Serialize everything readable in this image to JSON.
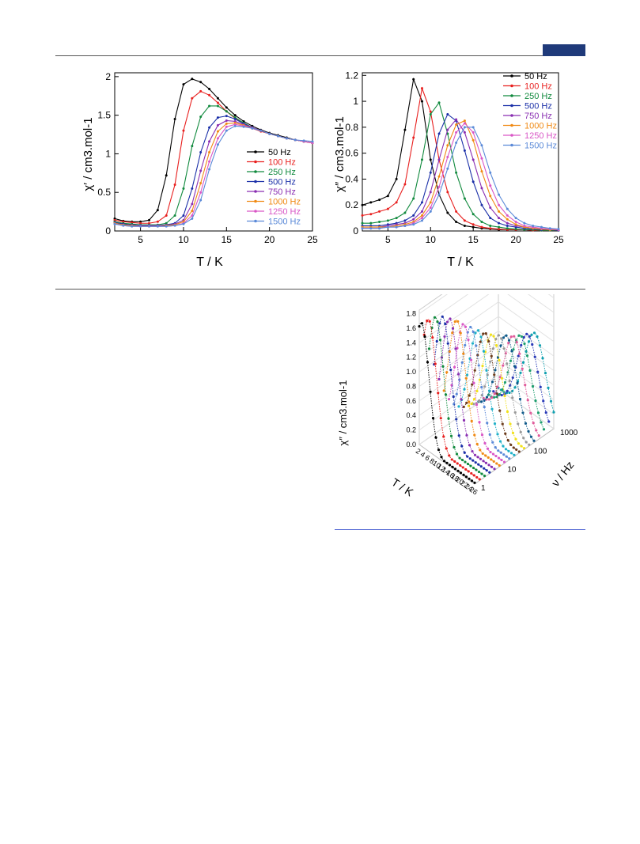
{
  "colors": {
    "header_tab": "#1f3a7a",
    "rules": "#555555",
    "footer_rule": "#5b6fd6"
  },
  "chart_data": [
    {
      "type": "line",
      "title": "",
      "xlabel": "T / K",
      "ylabel": "χ′ / cm3.mol-1",
      "xlim": [
        2,
        25
      ],
      "ylim": [
        0,
        2.05
      ],
      "xticks": [
        5,
        10,
        15,
        20,
        25
      ],
      "yticks": [
        0,
        0.5,
        1,
        1.5,
        2
      ],
      "ytick_labels": [
        "0",
        "0.5",
        "1",
        "1.5",
        "2"
      ],
      "legend_position": "center-right",
      "grid": false,
      "x": [
        2,
        3,
        4,
        5,
        6,
        7,
        8,
        9,
        10,
        11,
        12,
        13,
        14,
        15,
        16,
        17,
        18,
        19,
        20,
        21,
        22,
        23,
        24,
        25
      ],
      "series": [
        {
          "name": "50 Hz",
          "color": "#000000",
          "values": [
            0.16,
            0.13,
            0.12,
            0.12,
            0.14,
            0.27,
            0.72,
            1.45,
            1.9,
            1.97,
            1.93,
            1.84,
            1.72,
            1.6,
            1.5,
            1.42,
            1.36,
            1.31,
            1.27,
            1.24,
            1.21,
            1.18,
            1.16,
            1.14
          ]
        },
        {
          "name": "100 Hz",
          "color": "#e8201f",
          "values": [
            0.14,
            0.12,
            0.11,
            0.1,
            0.1,
            0.12,
            0.2,
            0.6,
            1.3,
            1.72,
            1.81,
            1.76,
            1.66,
            1.55,
            1.46,
            1.39,
            1.33,
            1.29,
            1.26,
            1.23,
            1.2,
            1.18,
            1.16,
            1.14
          ]
        },
        {
          "name": "250 Hz",
          "color": "#118a3e",
          "values": [
            0.12,
            0.1,
            0.09,
            0.08,
            0.08,
            0.08,
            0.1,
            0.2,
            0.55,
            1.1,
            1.48,
            1.62,
            1.62,
            1.55,
            1.47,
            1.4,
            1.34,
            1.3,
            1.26,
            1.23,
            1.2,
            1.18,
            1.16,
            1.14
          ]
        },
        {
          "name": "500 Hz",
          "color": "#1a2fa8",
          "values": [
            0.11,
            0.09,
            0.08,
            0.07,
            0.07,
            0.07,
            0.08,
            0.1,
            0.2,
            0.55,
            1.02,
            1.34,
            1.47,
            1.49,
            1.45,
            1.39,
            1.34,
            1.3,
            1.26,
            1.23,
            1.2,
            1.18,
            1.16,
            1.14
          ]
        },
        {
          "name": "750 Hz",
          "color": "#8a2fb2",
          "values": [
            0.1,
            0.08,
            0.07,
            0.07,
            0.07,
            0.07,
            0.07,
            0.09,
            0.14,
            0.35,
            0.78,
            1.16,
            1.37,
            1.43,
            1.42,
            1.38,
            1.34,
            1.3,
            1.26,
            1.23,
            1.2,
            1.18,
            1.16,
            1.14
          ]
        },
        {
          "name": "1000 Hz",
          "color": "#f08a14",
          "values": [
            0.1,
            0.08,
            0.07,
            0.06,
            0.06,
            0.06,
            0.07,
            0.08,
            0.12,
            0.26,
            0.62,
            1.02,
            1.29,
            1.39,
            1.4,
            1.37,
            1.33,
            1.3,
            1.26,
            1.23,
            1.2,
            1.18,
            1.16,
            1.14
          ]
        },
        {
          "name": "1250 Hz",
          "color": "#d957c6",
          "values": [
            0.09,
            0.07,
            0.06,
            0.06,
            0.06,
            0.06,
            0.06,
            0.07,
            0.1,
            0.2,
            0.5,
            0.9,
            1.2,
            1.35,
            1.38,
            1.36,
            1.33,
            1.3,
            1.26,
            1.23,
            1.2,
            1.18,
            1.16,
            1.14
          ]
        },
        {
          "name": "1500 Hz",
          "color": "#5b8ad8",
          "values": [
            0.09,
            0.07,
            0.06,
            0.06,
            0.06,
            0.06,
            0.06,
            0.07,
            0.09,
            0.16,
            0.4,
            0.8,
            1.12,
            1.3,
            1.36,
            1.35,
            1.33,
            1.3,
            1.26,
            1.23,
            1.2,
            1.18,
            1.17,
            1.16
          ]
        }
      ]
    },
    {
      "type": "line",
      "title": "",
      "xlabel": "T / K",
      "ylabel": "χ″ / cm3.mol-1",
      "xlim": [
        2,
        25
      ],
      "ylim": [
        0,
        1.22
      ],
      "xticks": [
        5,
        10,
        15,
        20,
        25
      ],
      "yticks": [
        0,
        0.2,
        0.4,
        0.6,
        0.8,
        1,
        1.2
      ],
      "ytick_labels": [
        "0",
        "0.2",
        "0.4",
        "0.6",
        "0.8",
        "1",
        "1.2"
      ],
      "legend_position": "top-right",
      "grid": false,
      "x": [
        2,
        3,
        4,
        5,
        6,
        7,
        8,
        9,
        10,
        11,
        12,
        13,
        14,
        15,
        16,
        17,
        18,
        19,
        20,
        21,
        22,
        23,
        24,
        25
      ],
      "series": [
        {
          "name": "50 Hz",
          "color": "#000000",
          "values": [
            0.2,
            0.22,
            0.24,
            0.27,
            0.4,
            0.78,
            1.17,
            1.0,
            0.55,
            0.28,
            0.14,
            0.07,
            0.04,
            0.03,
            0.02,
            0.015,
            0.01,
            0.01,
            0.01,
            0.01,
            0.005,
            0.005,
            0.005,
            0.005
          ]
        },
        {
          "name": "100 Hz",
          "color": "#e8201f",
          "values": [
            0.12,
            0.13,
            0.15,
            0.17,
            0.22,
            0.36,
            0.72,
            1.1,
            0.92,
            0.55,
            0.3,
            0.15,
            0.08,
            0.05,
            0.03,
            0.02,
            0.015,
            0.01,
            0.01,
            0.01,
            0.005,
            0.005,
            0.005,
            0.005
          ]
        },
        {
          "name": "250 Hz",
          "color": "#118a3e",
          "values": [
            0.06,
            0.06,
            0.07,
            0.08,
            0.1,
            0.14,
            0.25,
            0.55,
            0.9,
            0.99,
            0.75,
            0.45,
            0.25,
            0.13,
            0.07,
            0.04,
            0.03,
            0.02,
            0.015,
            0.01,
            0.01,
            0.005,
            0.005,
            0.005
          ]
        },
        {
          "name": "500 Hz",
          "color": "#1a2fa8",
          "values": [
            0.04,
            0.04,
            0.04,
            0.05,
            0.06,
            0.08,
            0.12,
            0.22,
            0.45,
            0.75,
            0.9,
            0.85,
            0.62,
            0.38,
            0.2,
            0.1,
            0.06,
            0.04,
            0.03,
            0.02,
            0.015,
            0.01,
            0.01,
            0.005
          ]
        },
        {
          "name": "750 Hz",
          "color": "#8a2fb2",
          "values": [
            0.03,
            0.03,
            0.03,
            0.04,
            0.05,
            0.06,
            0.09,
            0.15,
            0.3,
            0.55,
            0.78,
            0.86,
            0.76,
            0.55,
            0.33,
            0.18,
            0.1,
            0.06,
            0.04,
            0.03,
            0.02,
            0.015,
            0.01,
            0.01
          ]
        },
        {
          "name": "1000 Hz",
          "color": "#f08a14",
          "values": [
            0.03,
            0.03,
            0.03,
            0.03,
            0.04,
            0.05,
            0.07,
            0.12,
            0.22,
            0.42,
            0.66,
            0.82,
            0.85,
            0.7,
            0.46,
            0.27,
            0.15,
            0.09,
            0.05,
            0.03,
            0.02,
            0.015,
            0.01,
            0.01
          ]
        },
        {
          "name": "1250 Hz",
          "color": "#d957c6",
          "values": [
            0.02,
            0.02,
            0.02,
            0.03,
            0.03,
            0.04,
            0.06,
            0.1,
            0.18,
            0.34,
            0.57,
            0.76,
            0.83,
            0.76,
            0.56,
            0.35,
            0.2,
            0.12,
            0.07,
            0.04,
            0.03,
            0.02,
            0.015,
            0.01
          ]
        },
        {
          "name": "1500 Hz",
          "color": "#5b8ad8",
          "values": [
            0.02,
            0.02,
            0.02,
            0.03,
            0.03,
            0.04,
            0.05,
            0.08,
            0.15,
            0.28,
            0.48,
            0.68,
            0.8,
            0.8,
            0.66,
            0.45,
            0.28,
            0.17,
            0.1,
            0.06,
            0.04,
            0.03,
            0.02,
            0.015
          ]
        }
      ]
    },
    {
      "type": "line",
      "subtype": "3d-waterfall",
      "title": "",
      "xlabel": "T / K",
      "ylabel": "ν / Hz",
      "zlabel": "χ″ / cm3.mol-1",
      "xticks": [
        2,
        4,
        6,
        8,
        10,
        12,
        14,
        16,
        18,
        20,
        22,
        24,
        26
      ],
      "y_scale": "log",
      "yticks": [
        1,
        10,
        100,
        1000
      ],
      "zticks": [
        0.0,
        0.2,
        0.4,
        0.6,
        0.8,
        1.0,
        1.2,
        1.4,
        1.6,
        1.8
      ],
      "ztick_labels": [
        "0.0",
        "0.2",
        "0.4",
        "0.6",
        "0.8",
        "1.0",
        "1.2",
        "1.4",
        "1.6",
        "1.8"
      ],
      "grid": true,
      "approx_peak_values": [
        1.7,
        1.72,
        1.72,
        1.7,
        1.65,
        1.6,
        1.52,
        1.45,
        1.38,
        1.32,
        1.27,
        1.23,
        1.2,
        1.17,
        1.15,
        1.14,
        1.13
      ],
      "series_colors": [
        "#000000",
        "#e8201f",
        "#118a3e",
        "#1a2fa8",
        "#8a2fb2",
        "#f08a14",
        "#d957c6",
        "#5b8ad8",
        "#1fb0c8",
        "#6b3b1b",
        "#f2e11b",
        "#9a9a9a",
        "#0f5a8a",
        "#e05a9a",
        "#1e9e6e",
        "#2a3ab8",
        "#11a0b0"
      ]
    }
  ]
}
